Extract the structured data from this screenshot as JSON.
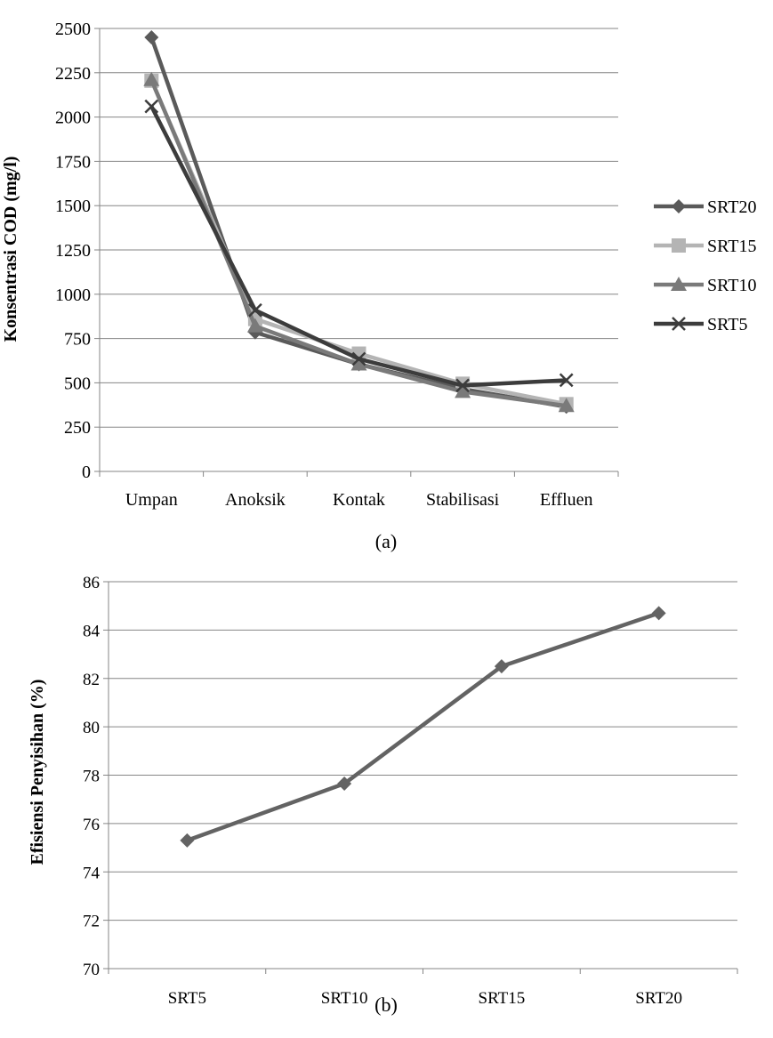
{
  "chart_data": [
    {
      "type": "line",
      "caption": "(a)",
      "title": "",
      "xlabel": "",
      "ylabel": "Konsentrasi COD (mg/l)",
      "categories": [
        "Umpan",
        "Anoksik",
        "Kontak",
        "Stabilisasi",
        "Effluen"
      ],
      "ylim": [
        0,
        2500
      ],
      "yticks": [
        "0",
        "250",
        "500",
        "750",
        "1000",
        "1250",
        "1500",
        "1750",
        "2000",
        "2250",
        "2500"
      ],
      "grid": true,
      "legend_position": "right",
      "series": [
        {
          "name": "SRT20",
          "values": [
            2450,
            785,
            605,
            465,
            365
          ],
          "color": "#5a5a5a",
          "marker": "diamond"
        },
        {
          "name": "SRT15",
          "values": [
            2205,
            860,
            665,
            495,
            380
          ],
          "color": "#b4b4b4",
          "marker": "square"
        },
        {
          "name": "SRT10",
          "values": [
            2210,
            820,
            605,
            450,
            370
          ],
          "color": "#7a7a7a",
          "marker": "triangle"
        },
        {
          "name": "SRT5",
          "values": [
            2060,
            910,
            635,
            485,
            515
          ],
          "color": "#3c3c3c",
          "marker": "x"
        }
      ]
    },
    {
      "type": "line",
      "caption": "(b)",
      "title": "",
      "xlabel": "",
      "ylabel": "Efisiensi Penyisihan (%)",
      "categories": [
        "SRT5",
        "SRT10",
        "SRT15",
        "SRT20"
      ],
      "ylim": [
        70,
        86
      ],
      "yticks": [
        "70",
        "72",
        "74",
        "76",
        "78",
        "80",
        "82",
        "84",
        "86"
      ],
      "grid": true,
      "series": [
        {
          "values": [
            75.3,
            77.65,
            82.5,
            84.7
          ],
          "color": "#636363",
          "marker": "diamond"
        }
      ]
    }
  ]
}
